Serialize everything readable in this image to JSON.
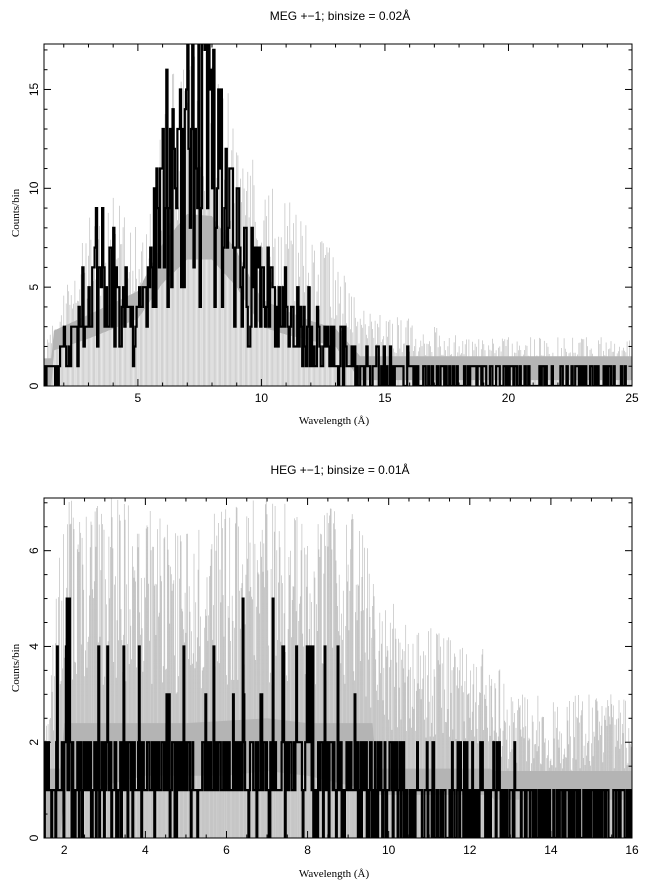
{
  "chart_data": [
    {
      "type": "line",
      "title": "MEG +−1; binsize = 0.02Å",
      "xlabel": "Wavelength (Å)",
      "ylabel": "Counts/bin",
      "xlim": [
        1.2,
        25
      ],
      "ylim": [
        0,
        17.3
      ],
      "xticks": [
        5,
        10,
        15,
        20,
        25
      ],
      "yticks": [
        0,
        5,
        10,
        15
      ],
      "grid": false,
      "series": [
        {
          "style": "error-envelope",
          "color": "#bfbfbf",
          "x": [
            1.2,
            2.0,
            3.0,
            4.0,
            5.0,
            5.5,
            6.0,
            6.5,
            7.0,
            7.5,
            8.0,
            8.5,
            9.0,
            10.0,
            11.0,
            12.0,
            13.0,
            14.0,
            15.0,
            16.0,
            17.0,
            18.0,
            20.0,
            22.0,
            25.0
          ],
          "y": [
            2.0,
            5.0,
            8.5,
            10.0,
            8.0,
            9.0,
            14.0,
            16.5,
            17.3,
            17.3,
            17.3,
            15.5,
            13.5,
            10.5,
            9.5,
            8.5,
            6.5,
            4.5,
            3.5,
            3.5,
            3.0,
            2.5,
            2.5,
            2.5,
            2.5
          ]
        },
        {
          "style": "model-band",
          "color": "#b4b4b4",
          "x": [
            1.2,
            1.5,
            1.6,
            3.0,
            5.0,
            6.0,
            7.0,
            8.0,
            9.0,
            10.0,
            11.0,
            12.0,
            13.0,
            14.0,
            17.0,
            25.0
          ],
          "y_low": [
            0,
            0,
            1.8,
            2.4,
            3.4,
            5.2,
            6.4,
            6.4,
            5.0,
            3.0,
            2.6,
            2.3,
            2.0,
            0.3,
            0.3,
            0.3
          ],
          "y_high": [
            1.4,
            1.4,
            2.8,
            3.6,
            4.8,
            7.2,
            8.7,
            8.6,
            6.8,
            4.4,
            3.8,
            3.3,
            2.9,
            1.5,
            1.5,
            1.5
          ]
        },
        {
          "style": "data",
          "color": "#000000",
          "x": [
            1.5,
            2.0,
            2.5,
            3.0,
            3.5,
            4.0,
            4.5,
            5.0,
            5.5,
            6.0,
            6.5,
            7.0,
            7.5,
            8.0,
            8.5,
            9.0,
            9.5,
            10.0,
            10.5,
            11.0,
            11.5,
            12.0,
            12.5,
            13.0,
            13.5,
            14.0,
            15.0,
            16.0,
            17.0,
            18.0,
            19.0,
            20.0,
            21.0,
            22.0,
            23.0,
            24.0,
            25.0
          ],
          "y": [
            0.5,
            2.0,
            3.5,
            4.5,
            5.5,
            5.0,
            4.0,
            3.0,
            4.5,
            9.0,
            11.0,
            12.0,
            12.5,
            12.0,
            9.0,
            6.0,
            5.0,
            4.0,
            4.0,
            3.5,
            3.0,
            2.5,
            2.0,
            1.5,
            1.5,
            0.5,
            0.5,
            0.5,
            0.3,
            0.3,
            0.3,
            0.3,
            0.3,
            0.3,
            0.3,
            0.3,
            0.3
          ],
          "peak": [
            1,
            4,
            8,
            8,
            10,
            9,
            8,
            6,
            9,
            14,
            16,
            17,
            16,
            17,
            14,
            11,
            9,
            8,
            7,
            6,
            6,
            6,
            5,
            4,
            3,
            2,
            2,
            2,
            1,
            1,
            1,
            1,
            1,
            1,
            1,
            1,
            1
          ]
        }
      ]
    },
    {
      "type": "line",
      "title": "HEG +−1; binsize = 0.01Å",
      "xlabel": "Wavelength (Å)",
      "ylabel": "Counts/bin",
      "xlim": [
        1.5,
        16
      ],
      "ylim": [
        0,
        7.1
      ],
      "xticks": [
        2,
        4,
        6,
        8,
        10,
        12,
        14,
        16
      ],
      "yticks": [
        0,
        2,
        4,
        6
      ],
      "grid": false,
      "series": [
        {
          "style": "error-envelope",
          "color": "#bfbfbf",
          "x": [
            1.5,
            2.0,
            3.0,
            4.0,
            5.0,
            6.0,
            7.0,
            8.0,
            8.5,
            9.0,
            10.0,
            11.0,
            12.0,
            12.5,
            13.0,
            14.0,
            15.0,
            16.0
          ],
          "y": [
            2.0,
            7.1,
            7.1,
            7.1,
            6.5,
            7.1,
            7.1,
            7.1,
            7.1,
            7.1,
            5.0,
            4.5,
            4.0,
            4.0,
            3.0,
            3.0,
            3.0,
            3.0
          ]
        },
        {
          "style": "model-band",
          "color": "#b4b4b4",
          "x": [
            1.5,
            1.9,
            2.0,
            3.0,
            4.0,
            5.0,
            6.0,
            7.0,
            8.0,
            9.0,
            9.6,
            9.7,
            12.5,
            12.6,
            16.0
          ],
          "y_low": [
            0,
            0,
            1.0,
            1.1,
            1.3,
            1.3,
            1.3,
            1.4,
            1.3,
            1.1,
            1.0,
            0.9,
            0.9,
            0.8,
            0.8
          ],
          "y_high": [
            1.45,
            1.45,
            2.4,
            2.4,
            2.4,
            2.4,
            2.45,
            2.5,
            2.4,
            2.4,
            2.4,
            1.45,
            1.45,
            1.4,
            1.4
          ]
        },
        {
          "style": "data",
          "color": "#000000",
          "x": [
            1.6,
            2.0,
            2.5,
            3.0,
            3.5,
            4.0,
            4.5,
            5.0,
            5.5,
            6.0,
            6.5,
            7.0,
            7.5,
            8.0,
            8.5,
            9.0,
            9.5,
            10.0,
            10.5,
            11.0,
            11.5,
            12.0,
            12.5,
            13.0,
            13.5,
            14.0,
            14.5,
            15.0,
            15.5,
            16.0
          ],
          "y": [
            0.8,
            1.2,
            1.3,
            1.4,
            1.4,
            1.4,
            1.4,
            1.4,
            1.3,
            1.5,
            1.5,
            1.5,
            1.4,
            1.4,
            1.4,
            1.3,
            1.1,
            0.8,
            0.8,
            0.8,
            0.8,
            0.8,
            0.7,
            0.6,
            0.5,
            0.4,
            0.3,
            0.3,
            0.3,
            0.3
          ],
          "peak": [
            3,
            5,
            6,
            4,
            4,
            5,
            4,
            4,
            4,
            6,
            5,
            7,
            5,
            5,
            6,
            4,
            3,
            2,
            2,
            2,
            2,
            3,
            2,
            1,
            1,
            1,
            1,
            1,
            1,
            1
          ]
        }
      ]
    }
  ]
}
